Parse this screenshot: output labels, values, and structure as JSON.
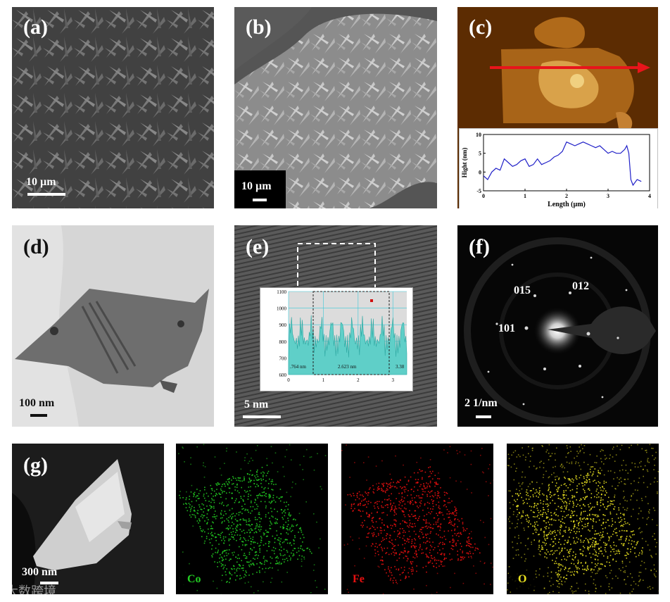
{
  "panels": {
    "a": {
      "label": "(a)",
      "scale": "10 µm"
    },
    "b": {
      "label": "(b)",
      "scale": "10 µm"
    },
    "c": {
      "label": "(c)",
      "profile": {
        "xlabel": "Length (µm)",
        "ylabel": "Hight (nm)",
        "xticks": [
          "0",
          "1",
          "2",
          "3",
          "4"
        ],
        "yticks": [
          "10",
          "5",
          "0",
          "-5"
        ],
        "line_color": "#2020c8",
        "arrow_color": "#e8151b"
      }
    },
    "d": {
      "label": "(d)",
      "scale": "100 nm"
    },
    "e": {
      "label": "(e)",
      "scale": "5 nm",
      "inset": {
        "yticks": [
          "1100",
          "1000",
          "900",
          "800",
          "700",
          "600"
        ],
        "xticks": [
          "0",
          "1",
          "2",
          "3"
        ],
        "annot_left": ".764 nm",
        "annot_mid": "2.623 nm",
        "annot_right": "3.38"
      }
    },
    "f": {
      "label": "(f)",
      "scale": "2 1/nm",
      "rings": [
        "015",
        "012",
        "101"
      ]
    },
    "g": {
      "label": "(g)",
      "scale": "300 nm"
    }
  },
  "eds_maps": [
    {
      "element": "Co",
      "color": "#22cc22"
    },
    {
      "element": "Fe",
      "color": "#e81010"
    },
    {
      "element": "O",
      "color": "#e8e020"
    }
  ],
  "chart_data": {
    "type": "line",
    "xlabel": "Length (µm)",
    "ylabel": "Hight (nm)",
    "xlim": [
      0,
      4
    ],
    "ylim": [
      -5,
      10
    ],
    "x": [
      0,
      0.1,
      0.2,
      0.3,
      0.4,
      0.5,
      0.6,
      0.7,
      0.8,
      0.9,
      1.0,
      1.1,
      1.2,
      1.3,
      1.4,
      1.5,
      1.6,
      1.7,
      1.8,
      1.9,
      2.0,
      2.1,
      2.2,
      2.3,
      2.4,
      2.5,
      2.6,
      2.7,
      2.8,
      2.9,
      3.0,
      3.1,
      3.2,
      3.3,
      3.4,
      3.45,
      3.5,
      3.55,
      3.6,
      3.7,
      3.8
    ],
    "y": [
      -1,
      -2,
      0,
      1,
      0.5,
      3.5,
      2.5,
      1.5,
      2,
      3,
      3.5,
      1.5,
      2,
      3.5,
      2,
      2.5,
      3,
      4,
      4.5,
      5.5,
      8,
      7.5,
      7,
      7.5,
      8,
      7.5,
      7,
      6.5,
      7,
      6,
      5,
      5.5,
      5,
      5,
      6,
      7,
      5,
      -2,
      -3.5,
      -2,
      -2.5
    ]
  },
  "watermark": "大数跨境"
}
